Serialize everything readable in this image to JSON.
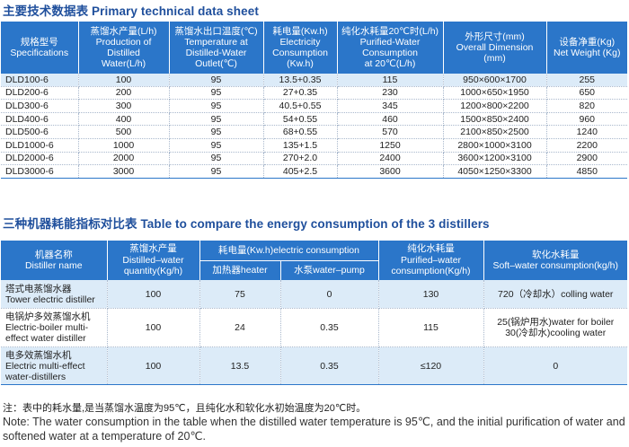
{
  "title1": "主要技术数据表 Primary technical data sheet",
  "table1": {
    "headers": [
      "规格型号\nSpecifications",
      "蒸馏水产量(L/h)\nProduction of\nDistilled\nWater(L/h)",
      "蒸馏水出口温度(℃)\nTemperature at\nDistilled-Water\nOutlet(℃)",
      "耗电量(Kw.h)\nElectricity\nConsumption\n(Kw.h)",
      "纯化水耗量20℃时(L/h)\nPurified-Water\nConsumption\nat 20℃(L/h)",
      "外形尺寸(mm)\nOverall Dimension\n(mm)",
      "设备净重(Kg)\nNet Weight (Kg)"
    ],
    "rows": [
      [
        "DLD100-6",
        "100",
        "95",
        "13.5+0.35",
        "115",
        "950×600×1700",
        "255"
      ],
      [
        "DLD200-6",
        "200",
        "95",
        "27+0.35",
        "230",
        "1000×650×1950",
        "650"
      ],
      [
        "DLD300-6",
        "300",
        "95",
        "40.5+0.55",
        "345",
        "1200×800×2200",
        "820"
      ],
      [
        "DLD400-6",
        "400",
        "95",
        "54+0.55",
        "460",
        "1500×850×2400",
        "960"
      ],
      [
        "DLD500-6",
        "500",
        "95",
        "68+0.55",
        "570",
        "2100×850×2500",
        "1240"
      ],
      [
        "DLD1000-6",
        "1000",
        "95",
        "135+1.5",
        "1250",
        "2800×1000×3100",
        "2200"
      ],
      [
        "DLD2000-6",
        "2000",
        "95",
        "270+2.0",
        "2400",
        "3600×1200×3100",
        "2900"
      ],
      [
        "DLD3000-6",
        "3000",
        "95",
        "405+2.5",
        "3600",
        "4050×1250×3300",
        "4850"
      ]
    ]
  },
  "title2": "三种机器耗能指标对比表 Table to compare the energy consumption of the 3 distillers",
  "table2": {
    "h_name": "机器名称\nDistiller name",
    "h_quantity": "蒸馏水产量\nDistilled–water\nquantity(Kg/h)",
    "h_power": "耗电量(Kw.h)electric consumption",
    "h_heater": "加热器heater",
    "h_pump": "水泵water–pump",
    "h_purified": "纯化水耗量\nPurified–water\nconsumption(Kg/h)",
    "h_soft": "软化水耗量\nSoft–water consumption(kg/h)",
    "rows": [
      [
        "塔式电蒸馏水器\nTower electric distiller",
        "100",
        "75",
        "0",
        "130",
        "720（冷却水）colling water"
      ],
      [
        "电锅炉多效蒸馏水机\nElectric-boiler multi-\neffect water distiller",
        "100",
        "24",
        "0.35",
        "115",
        "25(锅炉用水)water for boiler\n30(冷却水)cooling water"
      ],
      [
        "电多效蒸馏水机\nElectric multi-effect\nwater-distillers",
        "100",
        "13.5",
        "0.35",
        "≤120",
        "0"
      ]
    ]
  },
  "note_cn": "注：表中的耗水量,是当蒸馏水温度为95℃，且纯化水和软化水初始温度为20℃时。",
  "note_en": "Note: The water consumption in the table when the distilled water temperature is 95℃, and the initial purification of water and softened water at a temperature of 20℃."
}
